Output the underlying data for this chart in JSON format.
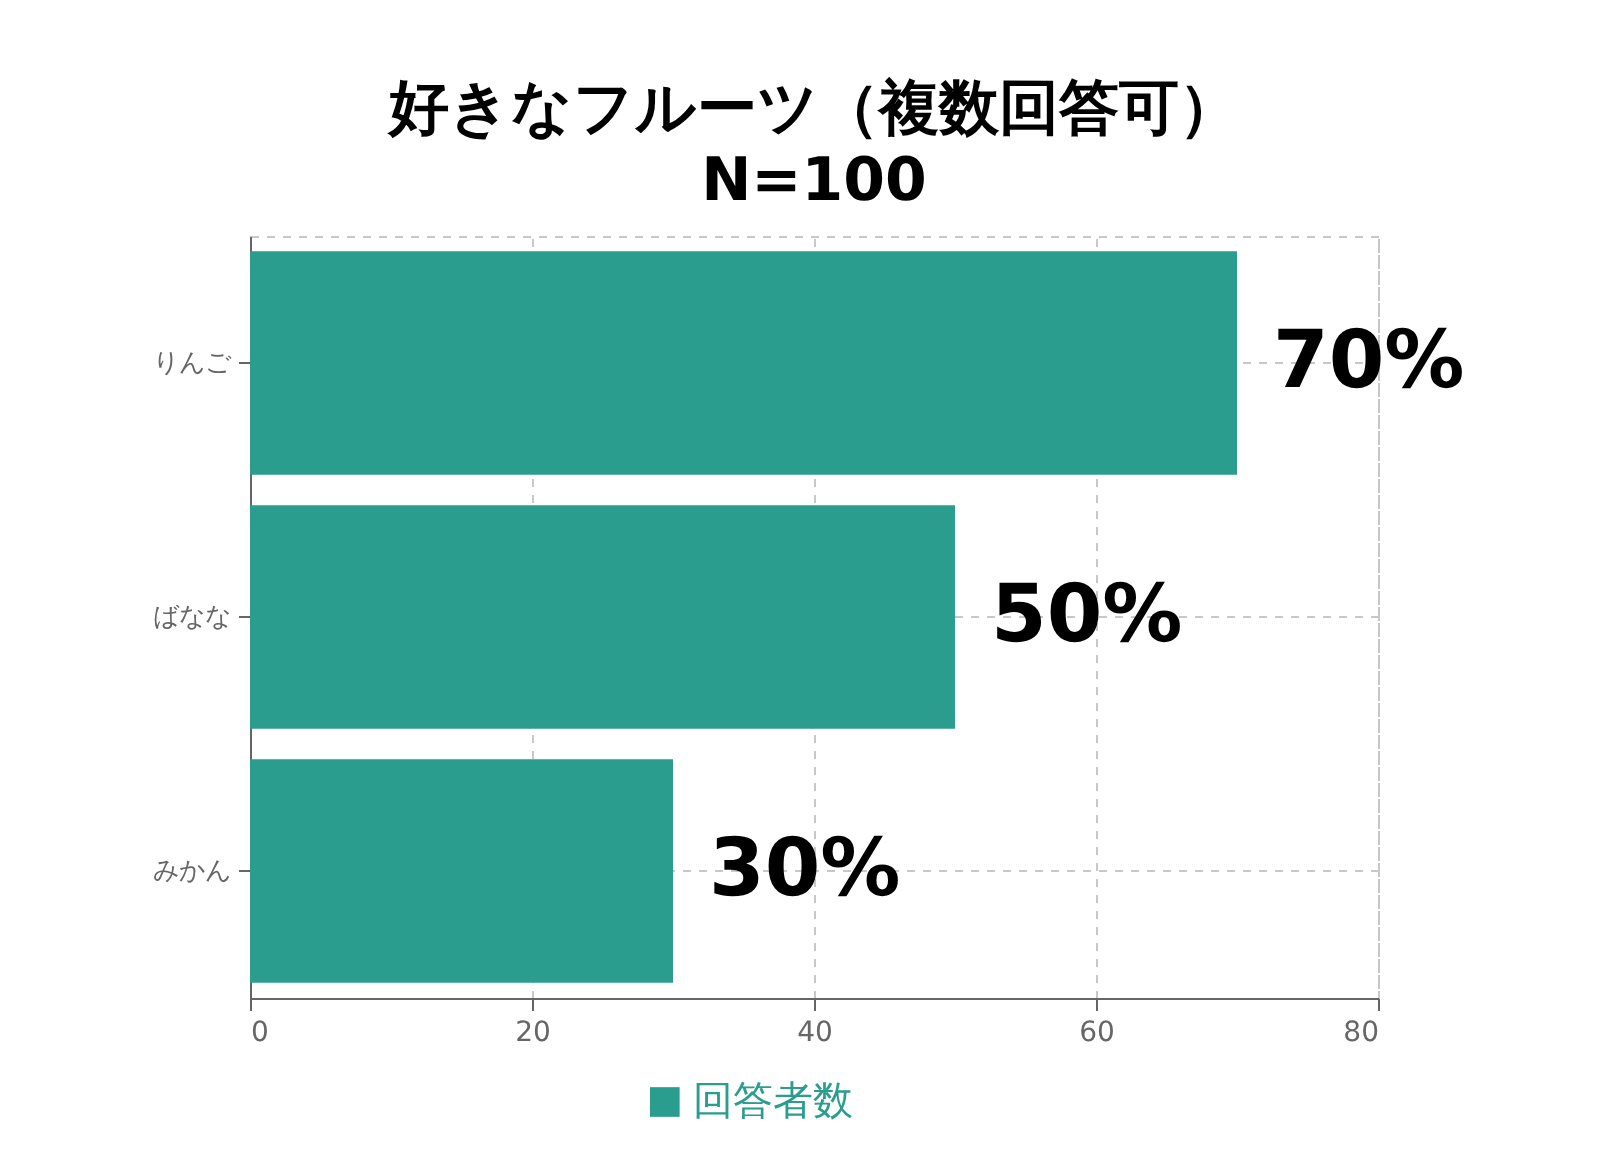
{
  "chart_data": {
    "type": "bar",
    "orientation": "horizontal",
    "title": "好きなフルーツ（複数回答可）",
    "subtitle": "N=100",
    "categories": [
      "りんご",
      "ばなな",
      "みかん"
    ],
    "series": [
      {
        "name": "回答者数",
        "color": "#2a9d8f",
        "values": [
          70,
          50,
          30
        ],
        "value_labels": [
          "70%",
          "50%",
          "30%"
        ]
      }
    ],
    "xlim": [
      0,
      80
    ],
    "xticks": [
      0,
      20,
      40,
      60,
      80
    ],
    "grid": true,
    "legend": "bottom"
  }
}
